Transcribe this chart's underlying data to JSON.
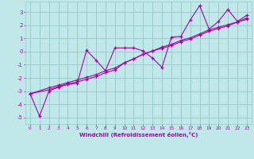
{
  "background_color": "#c0e8e8",
  "grid_color": "#98c8c8",
  "line_color": "#aa00aa",
  "xlabel": "Windchill (Refroidissement éolien,°C)",
  "xlim": [
    -0.5,
    23.5
  ],
  "ylim": [
    -5.5,
    3.8
  ],
  "yticks": [
    -5,
    -4,
    -3,
    -2,
    -1,
    0,
    1,
    2,
    3
  ],
  "xticks": [
    0,
    1,
    2,
    3,
    4,
    5,
    6,
    7,
    8,
    9,
    10,
    11,
    12,
    13,
    14,
    15,
    16,
    17,
    18,
    19,
    20,
    21,
    22,
    23
  ],
  "series1_x": [
    0,
    1,
    2,
    3,
    4,
    5,
    6,
    7,
    8,
    9,
    10,
    11,
    12,
    13,
    14,
    15,
    16,
    17,
    18,
    19,
    20,
    21,
    22,
    23
  ],
  "series1_y": [
    -3.2,
    -4.9,
    -3.0,
    -2.7,
    -2.5,
    -2.4,
    0.1,
    -0.65,
    -1.45,
    0.28,
    0.28,
    0.28,
    0.05,
    -0.5,
    -1.2,
    1.1,
    1.15,
    2.4,
    3.5,
    1.7,
    2.3,
    3.2,
    2.3,
    2.75
  ],
  "series2_x": [
    0,
    2,
    3,
    4,
    5,
    6,
    7,
    8,
    9,
    10,
    11,
    12,
    13,
    14,
    15,
    16,
    17,
    18,
    19,
    20,
    21,
    22,
    23
  ],
  "series2_y": [
    -3.2,
    -2.9,
    -2.65,
    -2.45,
    -2.3,
    -2.1,
    -1.9,
    -1.6,
    -1.4,
    -0.85,
    -0.55,
    -0.2,
    0.05,
    0.25,
    0.45,
    0.75,
    0.95,
    1.25,
    1.55,
    1.75,
    1.95,
    2.25,
    2.45
  ],
  "series3_x": [
    0,
    2,
    3,
    4,
    5,
    6,
    7,
    8,
    9,
    10,
    11,
    12,
    13,
    14,
    15,
    16,
    17,
    18,
    19,
    20,
    21,
    22,
    23
  ],
  "series3_y": [
    -3.2,
    -2.75,
    -2.55,
    -2.35,
    -2.15,
    -1.95,
    -1.75,
    -1.45,
    -1.25,
    -0.85,
    -0.55,
    -0.2,
    0.05,
    0.35,
    0.55,
    0.85,
    1.05,
    1.35,
    1.65,
    1.85,
    2.05,
    2.25,
    2.55
  ]
}
